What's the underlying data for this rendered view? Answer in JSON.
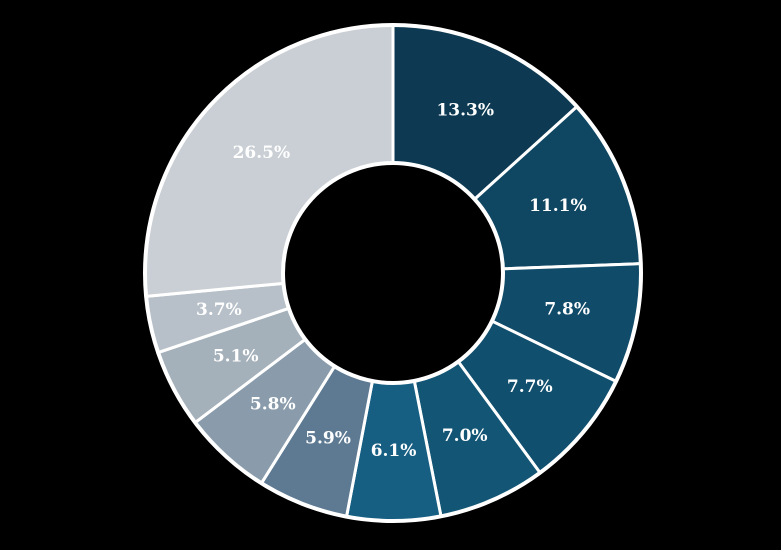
{
  "chart_data": {
    "type": "pie",
    "donut": true,
    "title": "",
    "labels_format": "percent",
    "start_angle_deg": 0,
    "direction": "clockwise",
    "values": [
      13.3,
      11.1,
      7.8,
      7.7,
      7.0,
      6.1,
      5.9,
      5.8,
      5.1,
      3.7,
      26.5
    ],
    "labels": [
      "13.3%",
      "11.1%",
      "7.8%",
      "7.7%",
      "7.0%",
      "6.1%",
      "5.9%",
      "5.8%",
      "5.1%",
      "3.7%",
      "26.5%"
    ],
    "colors": [
      "#0d3a52",
      "#0f4762",
      "#104b69",
      "#114f6e",
      "#125574",
      "#165f82",
      "#5d7a92",
      "#8a9cac",
      "#a4b0ba",
      "#b7c0c8",
      "#c9cfd4"
    ],
    "border_color": "#ffffff",
    "background": "#000000"
  }
}
